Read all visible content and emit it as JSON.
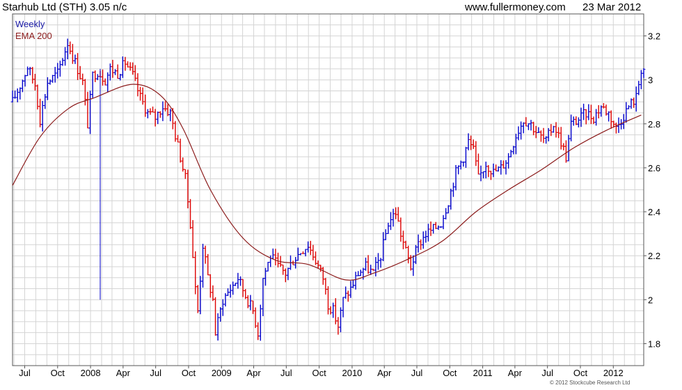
{
  "header": {
    "title": "Starhub Ltd (STH) 3.05 n/c",
    "site": "www.fullermoney.com",
    "date": "23 Mar 2012"
  },
  "footer": {
    "copyright": "© 2012 Stockcube Research Ltd"
  },
  "colors": {
    "up": "#0000cc",
    "down": "#dd0000",
    "ema": "#8b1a1a",
    "grid": "#d4d4d4",
    "legend_weekly": "#1a1aa6",
    "legend_ema": "#8b1a1a"
  },
  "chart_data": {
    "type": "line",
    "chart_style": "weekly high-low bars with EMA overlay",
    "legend": [
      "Weekly",
      "EMA 200"
    ],
    "legend_placement": "top-left",
    "y_axis_side": "right",
    "grid": true,
    "ylim": [
      1.7,
      3.3
    ],
    "yticks": [
      1.8,
      2.0,
      2.2,
      2.4,
      2.6,
      2.8,
      3.0,
      3.2
    ],
    "ytick_labels": [
      "1.8",
      "2",
      "2.2",
      "2.4",
      "2.6",
      "2.8",
      "3",
      "3.2"
    ],
    "xlim": [
      "2007-05-28",
      "2012-03-26"
    ],
    "xticks": [
      {
        "label": "Jul",
        "date": "2007-07-01"
      },
      {
        "label": "Oct",
        "date": "2007-10-01"
      },
      {
        "label": "2008",
        "date": "2008-01-01"
      },
      {
        "label": "Apr",
        "date": "2008-04-01"
      },
      {
        "label": "Jul",
        "date": "2008-07-01"
      },
      {
        "label": "Oct",
        "date": "2008-10-01"
      },
      {
        "label": "2009",
        "date": "2009-01-01"
      },
      {
        "label": "Apr",
        "date": "2009-04-01"
      },
      {
        "label": "Jul",
        "date": "2009-07-01"
      },
      {
        "label": "Oct",
        "date": "2009-10-01"
      },
      {
        "label": "2010",
        "date": "2010-01-01"
      },
      {
        "label": "Apr",
        "date": "2010-04-01"
      },
      {
        "label": "Jul",
        "date": "2010-07-01"
      },
      {
        "label": "Oct",
        "date": "2010-10-01"
      },
      {
        "label": "2011",
        "date": "2011-01-01"
      },
      {
        "label": "Apr",
        "date": "2011-04-01"
      },
      {
        "label": "Jul",
        "date": "2011-07-01"
      },
      {
        "label": "Oct",
        "date": "2011-10-01"
      },
      {
        "label": "2012",
        "date": "2012-01-01"
      }
    ],
    "close_series": {
      "name": "Weekly",
      "points": [
        [
          "2007-05-28",
          2.9
        ],
        [
          "2007-06-25",
          3.0
        ],
        [
          "2007-07-09",
          3.06
        ],
        [
          "2007-07-30",
          2.98
        ],
        [
          "2007-08-13",
          2.82
        ],
        [
          "2007-09-03",
          2.99
        ],
        [
          "2007-10-01",
          3.03
        ],
        [
          "2007-10-29",
          3.17
        ],
        [
          "2007-11-26",
          3.05
        ],
        [
          "2007-12-10",
          2.99
        ],
        [
          "2007-12-24",
          2.8
        ],
        [
          "2008-01-07",
          3.02
        ],
        [
          "2008-01-21",
          3.04
        ],
        [
          "2008-02-11",
          3.0
        ],
        [
          "2008-02-25",
          3.05
        ],
        [
          "2008-03-17",
          3.03
        ],
        [
          "2008-04-07",
          3.08
        ],
        [
          "2008-04-28",
          3.02
        ],
        [
          "2008-05-19",
          2.92
        ],
        [
          "2008-06-09",
          2.85
        ],
        [
          "2008-06-30",
          2.83
        ],
        [
          "2008-07-21",
          2.88
        ],
        [
          "2008-08-11",
          2.85
        ],
        [
          "2008-09-01",
          2.7
        ],
        [
          "2008-09-22",
          2.55
        ],
        [
          "2008-10-06",
          2.35
        ],
        [
          "2008-10-20",
          2.05
        ],
        [
          "2008-10-27",
          1.95
        ],
        [
          "2008-11-10",
          2.25
        ],
        [
          "2008-11-24",
          2.1
        ],
        [
          "2008-12-08",
          2.0
        ],
        [
          "2008-12-15",
          1.85
        ],
        [
          "2009-01-05",
          2.0
        ],
        [
          "2009-01-26",
          2.05
        ],
        [
          "2009-02-16",
          2.1
        ],
        [
          "2009-03-09",
          2.02
        ],
        [
          "2009-03-30",
          1.95
        ],
        [
          "2009-04-13",
          1.85
        ],
        [
          "2009-04-27",
          2.1
        ],
        [
          "2009-05-18",
          2.2
        ],
        [
          "2009-06-08",
          2.15
        ],
        [
          "2009-06-29",
          2.12
        ],
        [
          "2009-07-20",
          2.18
        ],
        [
          "2009-08-10",
          2.22
        ],
        [
          "2009-08-31",
          2.25
        ],
        [
          "2009-09-21",
          2.18
        ],
        [
          "2009-10-12",
          2.1
        ],
        [
          "2009-10-26",
          1.98
        ],
        [
          "2009-11-09",
          1.95
        ],
        [
          "2009-11-23",
          1.88
        ],
        [
          "2009-12-07",
          2.0
        ],
        [
          "2009-12-28",
          2.05
        ],
        [
          "2010-01-18",
          2.12
        ],
        [
          "2010-02-08",
          2.15
        ],
        [
          "2010-03-01",
          2.12
        ],
        [
          "2010-03-22",
          2.2
        ],
        [
          "2010-04-12",
          2.35
        ],
        [
          "2010-05-03",
          2.4
        ],
        [
          "2010-05-17",
          2.3
        ],
        [
          "2010-05-31",
          2.22
        ],
        [
          "2010-06-14",
          2.15
        ],
        [
          "2010-07-05",
          2.25
        ],
        [
          "2010-07-26",
          2.3
        ],
        [
          "2010-08-16",
          2.32
        ],
        [
          "2010-09-06",
          2.35
        ],
        [
          "2010-09-27",
          2.45
        ],
        [
          "2010-10-18",
          2.58
        ],
        [
          "2010-11-08",
          2.65
        ],
        [
          "2010-11-22",
          2.72
        ],
        [
          "2010-12-06",
          2.68
        ],
        [
          "2010-12-20",
          2.55
        ],
        [
          "2011-01-10",
          2.62
        ],
        [
          "2011-01-31",
          2.58
        ],
        [
          "2011-02-21",
          2.6
        ],
        [
          "2011-03-14",
          2.65
        ],
        [
          "2011-04-04",
          2.75
        ],
        [
          "2011-04-25",
          2.82
        ],
        [
          "2011-05-16",
          2.8
        ],
        [
          "2011-06-06",
          2.75
        ],
        [
          "2011-06-27",
          2.72
        ],
        [
          "2011-07-18",
          2.8
        ],
        [
          "2011-08-08",
          2.72
        ],
        [
          "2011-08-22",
          2.65
        ],
        [
          "2011-09-05",
          2.8
        ],
        [
          "2011-09-26",
          2.82
        ],
        [
          "2011-10-17",
          2.85
        ],
        [
          "2011-11-07",
          2.83
        ],
        [
          "2011-11-28",
          2.88
        ],
        [
          "2011-12-19",
          2.85
        ],
        [
          "2012-01-09",
          2.78
        ],
        [
          "2012-01-23",
          2.82
        ],
        [
          "2012-02-13",
          2.88
        ],
        [
          "2012-03-05",
          2.92
        ],
        [
          "2012-03-19",
          3.05
        ]
      ]
    },
    "ema_series": {
      "name": "EMA 200",
      "points": [
        [
          "2007-05-28",
          2.52
        ],
        [
          "2007-08-13",
          2.74
        ],
        [
          "2007-11-01",
          2.87
        ],
        [
          "2008-01-14",
          2.92
        ],
        [
          "2008-04-28",
          2.98
        ],
        [
          "2008-07-14",
          2.93
        ],
        [
          "2008-09-15",
          2.78
        ],
        [
          "2008-12-01",
          2.5
        ],
        [
          "2009-03-02",
          2.28
        ],
        [
          "2009-06-01",
          2.18
        ],
        [
          "2009-09-01",
          2.16
        ],
        [
          "2009-12-14",
          2.09
        ],
        [
          "2010-03-01",
          2.12
        ],
        [
          "2010-06-14",
          2.19
        ],
        [
          "2010-09-13",
          2.27
        ],
        [
          "2010-12-13",
          2.4
        ],
        [
          "2011-03-14",
          2.5
        ],
        [
          "2011-06-13",
          2.59
        ],
        [
          "2011-09-12",
          2.69
        ],
        [
          "2011-12-12",
          2.77
        ],
        [
          "2012-03-19",
          2.84
        ]
      ]
    },
    "outlier_bar": {
      "date": "2008-01-28",
      "high": 3.05,
      "low": 2.0
    }
  }
}
